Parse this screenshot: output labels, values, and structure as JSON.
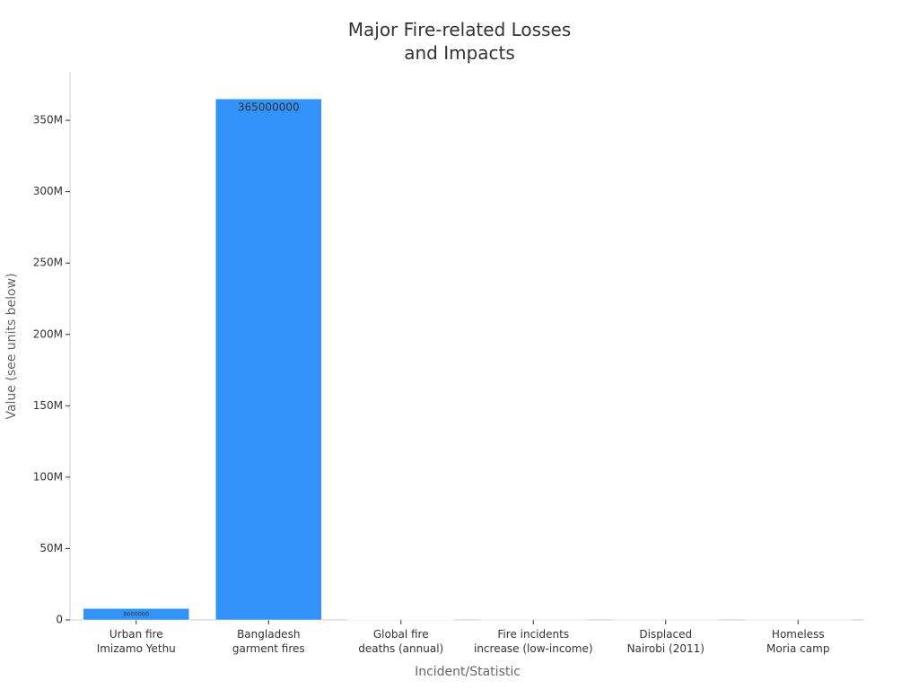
{
  "chart_data": {
    "type": "bar",
    "title": "Major Fire-related Losses\nand Impacts",
    "x_label": "Incident/Statistic",
    "y_label": "Value (see units below)",
    "categories": [
      "Urban fire\nImizamo Yethu",
      "Bangladesh\ngarment fires",
      "Global fire\ndeaths (annual)",
      "Fire incidents\nincrease (low-income)",
      "Displaced\nNairobi (2011)",
      "Homeless\nMoria camp"
    ],
    "values": [
      8000000,
      365000000,
      180000,
      30,
      10000,
      12000
    ],
    "color": "#3192f7",
    "ylim": [
      0,
      384000000
    ],
    "yticks": [
      0,
      {
        "value": 50000000,
        "label": "50M"
      },
      {
        "value": 100000000,
        "label": "100M"
      },
      {
        "value": 150000000,
        "label": "150M"
      },
      {
        "value": 200000000,
        "label": "200M"
      },
      {
        "value": 250000000,
        "label": "250M"
      },
      {
        "value": 300000000,
        "label": "300M"
      },
      {
        "value": 350000000,
        "label": "350M"
      }
    ],
    "grid": false
  }
}
